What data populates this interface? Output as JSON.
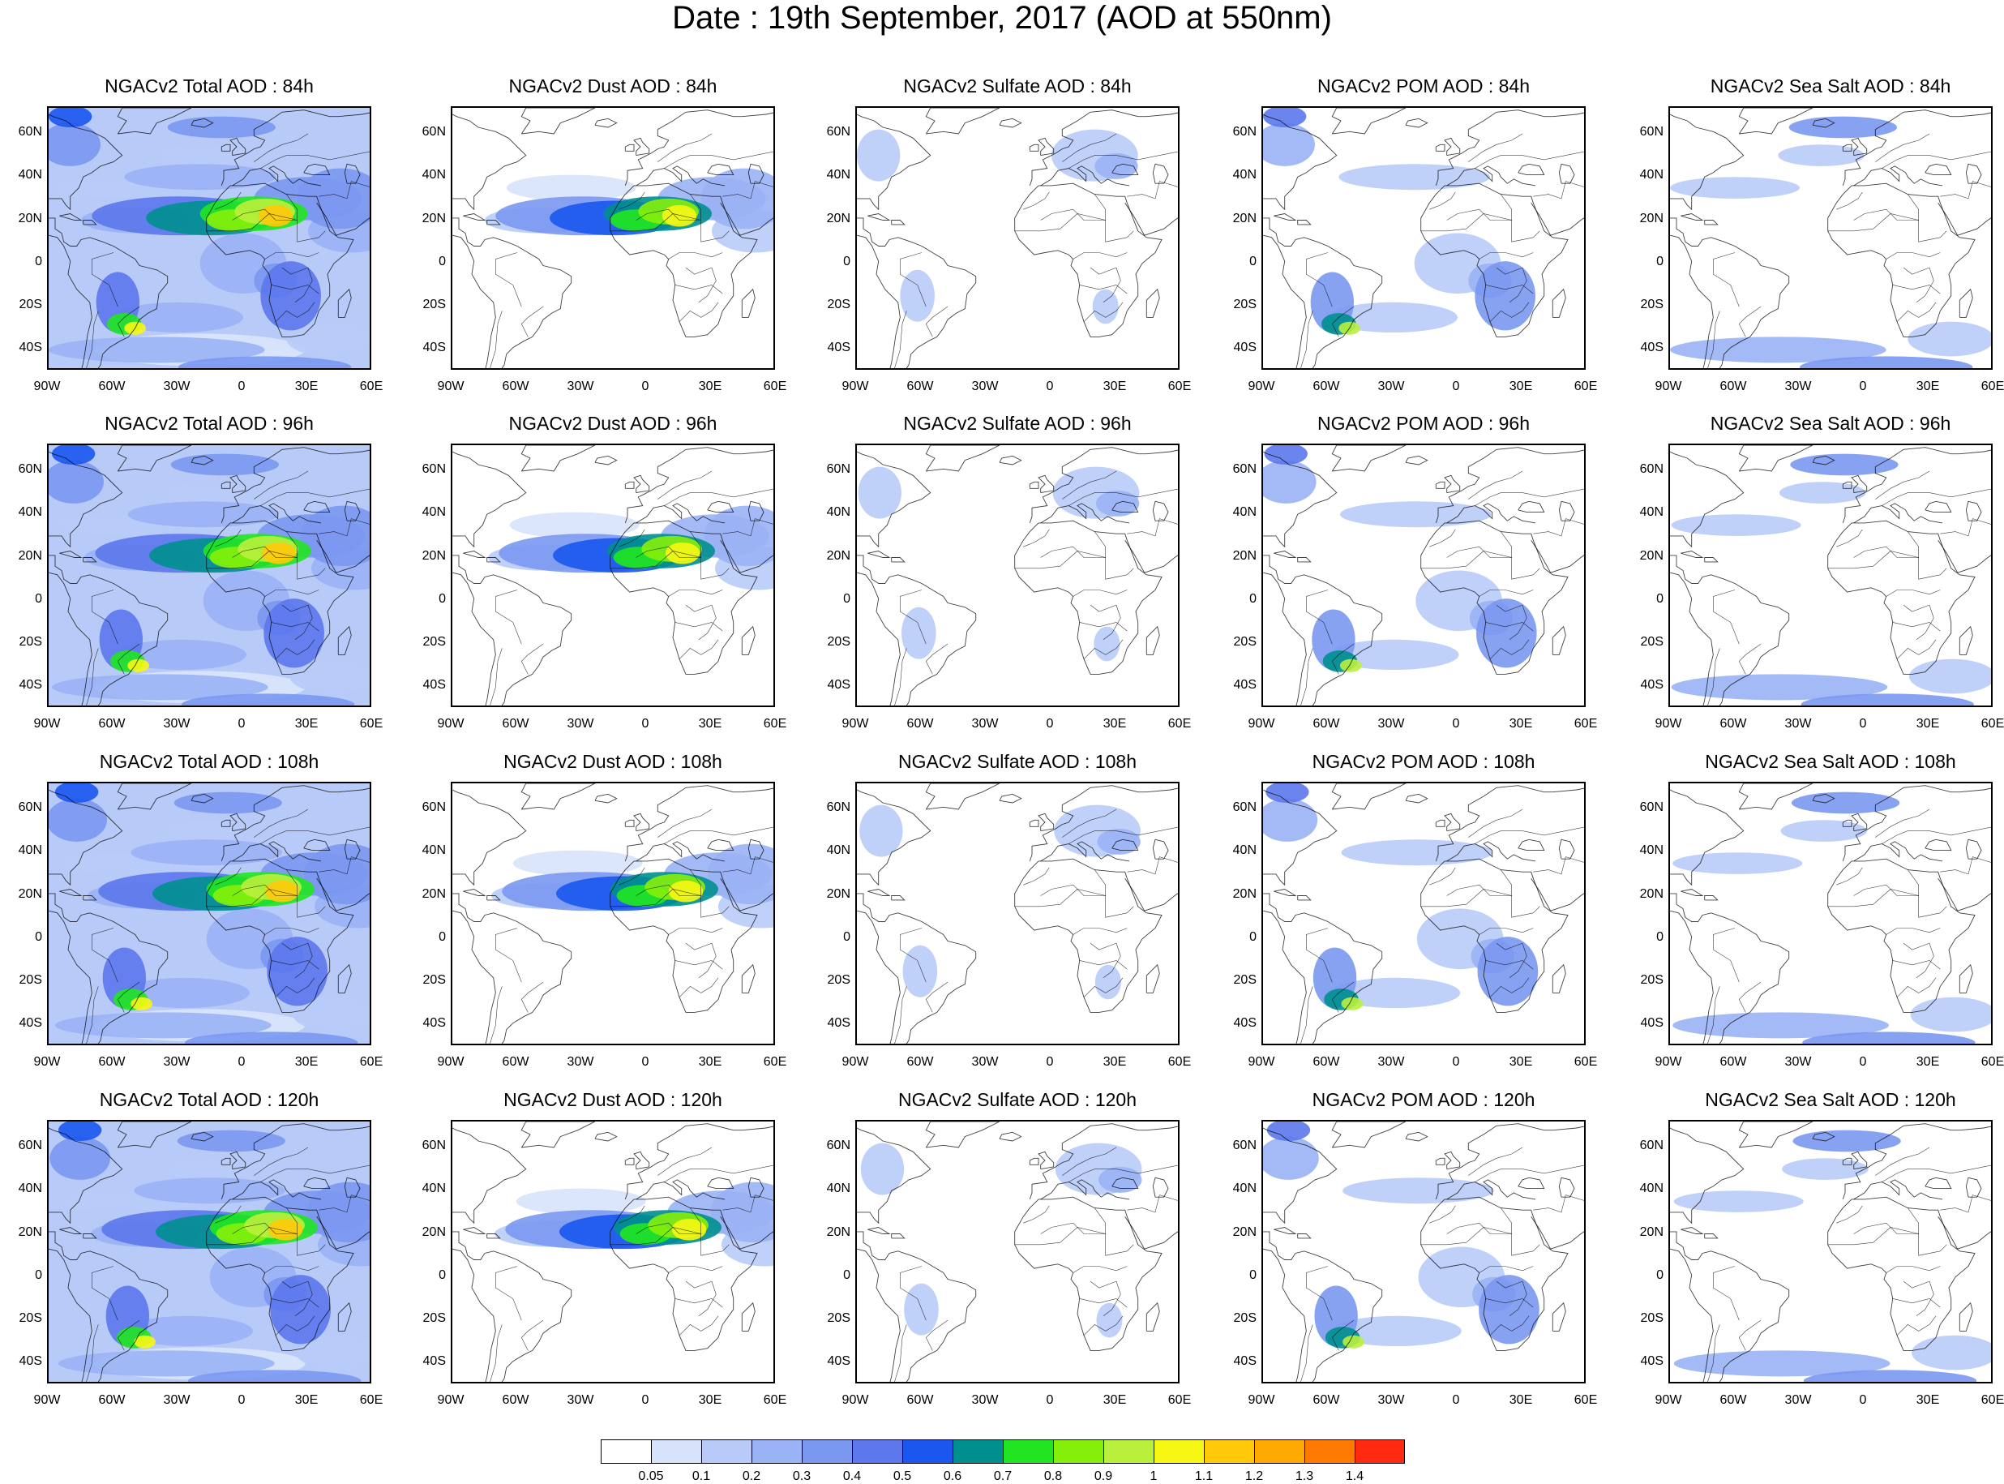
{
  "title": "Date : 19th September, 2017 (AOD at 550nm)",
  "panels": [
    [
      "NGACv2 Total AOD : 84h",
      "NGACv2 Dust AOD : 84h",
      "NGACv2 Sulfate AOD : 84h",
      "NGACv2 POM AOD : 84h",
      "NGACv2 Sea Salt AOD : 84h"
    ],
    [
      "NGACv2 Total AOD : 96h",
      "NGACv2 Dust AOD : 96h",
      "NGACv2 Sulfate AOD : 96h",
      "NGACv2 POM AOD : 96h",
      "NGACv2 Sea Salt AOD : 96h"
    ],
    [
      "NGACv2 Total AOD : 108h",
      "NGACv2 Dust AOD : 108h",
      "NGACv2 Sulfate AOD : 108h",
      "NGACv2 POM AOD : 108h",
      "NGACv2 Sea Salt AOD : 108h"
    ],
    [
      "NGACv2 Total AOD : 120h",
      "NGACv2 Dust AOD : 120h",
      "NGACv2 Sulfate AOD : 120h",
      "NGACv2 POM AOD : 120h",
      "NGACv2 Sea Salt  AOD : 120h"
    ]
  ],
  "lat_labels": [
    "60N",
    "40N",
    "20N",
    "0",
    "20S",
    "40S"
  ],
  "lon_labels": [
    "90W",
    "60W",
    "30W",
    "0",
    "30E",
    "60E"
  ],
  "colorbar": {
    "colors": [
      "#ffffff",
      "#d7e3fb",
      "#b8cbf8",
      "#9ab3f5",
      "#7b98f1",
      "#5c78ec",
      "#1a57ee",
      "#008f8f",
      "#21e521",
      "#86ef0a",
      "#b9f03c",
      "#f7f714",
      "#ffc90a",
      "#ffaa00",
      "#ff7a00",
      "#ff2a0f"
    ],
    "labels": [
      "0.05",
      "0.1",
      "0.2",
      "0.3",
      "0.4",
      "0.5",
      "0.6",
      "0.7",
      "0.8",
      "0.9",
      "1",
      "1.1",
      "1.2",
      "1.3",
      "1.4"
    ]
  }
}
